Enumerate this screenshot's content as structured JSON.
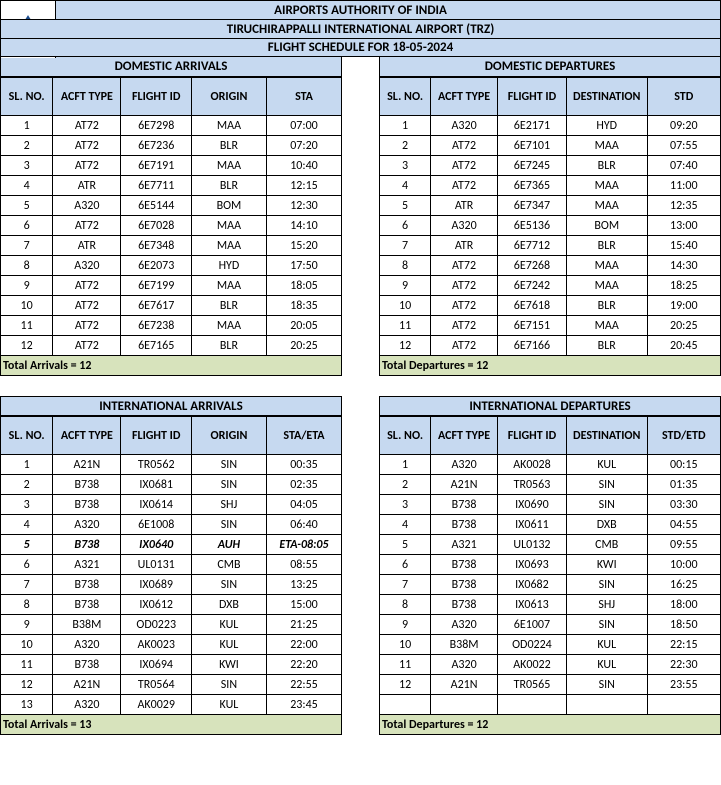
{
  "header": {
    "line1": "AIRPORTS AUTHORITY OF INDIA",
    "line2": "TIRUCHIRAPPALLI INTERNATIONAL AIRPORT (TRZ)",
    "line3": "FLIGHT SCHEDULE FOR 18-05-2024",
    "logo_text": "AIRPORTS AUTHORITY OF INDIA"
  },
  "colors": {
    "header_bg": "#c6d9f0",
    "total_bg": "#d7e3bc",
    "border": "#000000"
  },
  "dom_arr": {
    "title": "DOMESTIC ARRIVALS",
    "cols": [
      "SL. NO.",
      "ACFT TYPE",
      "FLIGHT ID",
      "ORIGIN",
      "STA"
    ],
    "rows": [
      [
        "1",
        "AT72",
        "6E7298",
        "MAA",
        "07:00"
      ],
      [
        "2",
        "AT72",
        "6E7236",
        "BLR",
        "07:20"
      ],
      [
        "3",
        "AT72",
        "6E7191",
        "MAA",
        "10:40"
      ],
      [
        "4",
        "ATR",
        "6E7711",
        "BLR",
        "12:15"
      ],
      [
        "5",
        "A320",
        "6E5144",
        "BOM",
        "12:30"
      ],
      [
        "6",
        "AT72",
        "6E7028",
        "MAA",
        "14:10"
      ],
      [
        "7",
        "ATR",
        "6E7348",
        "MAA",
        "15:20"
      ],
      [
        "8",
        "A320",
        "6E2073",
        "HYD",
        "17:50"
      ],
      [
        "9",
        "AT72",
        "6E7199",
        "MAA",
        "18:05"
      ],
      [
        "10",
        "AT72",
        "6E7617",
        "BLR",
        "18:35"
      ],
      [
        "11",
        "AT72",
        "6E7238",
        "MAA",
        "20:05"
      ],
      [
        "12",
        "AT72",
        "6E7165",
        "BLR",
        "20:25"
      ]
    ],
    "total": "Total Arrivals = 12"
  },
  "dom_dep": {
    "title": "DOMESTIC DEPARTURES",
    "cols": [
      "SL. NO.",
      "ACFT TYPE",
      "FLIGHT ID",
      "DESTINATION",
      "STD"
    ],
    "rows": [
      [
        "1",
        "A320",
        "6E2171",
        "HYD",
        "09:20"
      ],
      [
        "2",
        "AT72",
        "6E7101",
        "MAA",
        "07:55"
      ],
      [
        "3",
        "AT72",
        "6E7245",
        "BLR",
        "07:40"
      ],
      [
        "4",
        "AT72",
        "6E7365",
        "MAA",
        "11:00"
      ],
      [
        "5",
        "ATR",
        "6E7347",
        "MAA",
        "12:35"
      ],
      [
        "6",
        "A320",
        "6E5136",
        "BOM",
        "13:00"
      ],
      [
        "7",
        "ATR",
        "6E7712",
        "BLR",
        "15:40"
      ],
      [
        "8",
        "AT72",
        "6E7268",
        "MAA",
        "14:30"
      ],
      [
        "9",
        "AT72",
        "6E7242",
        "MAA",
        "18:25"
      ],
      [
        "10",
        "AT72",
        "6E7618",
        "BLR",
        "19:00"
      ],
      [
        "11",
        "AT72",
        "6E7151",
        "MAA",
        "20:25"
      ],
      [
        "12",
        "AT72",
        "6E7166",
        "BLR",
        "20:45"
      ]
    ],
    "total": "Total Departures = 12"
  },
  "int_arr": {
    "title": "INTERNATIONAL ARRIVALS",
    "cols": [
      "SL. NO.",
      "ACFT TYPE",
      "FLIGHT ID",
      "ORIGIN",
      "STA/ETA"
    ],
    "rows": [
      [
        "1",
        "A21N",
        "TR0562",
        "SIN",
        "00:35"
      ],
      [
        "2",
        "B738",
        "IX0681",
        "SIN",
        "02:35"
      ],
      [
        "3",
        "B738",
        "IX0614",
        "SHJ",
        "04:05"
      ],
      [
        "4",
        "A320",
        "6E1008",
        "SIN",
        "06:40"
      ],
      [
        "5",
        "B738",
        "IX0640",
        "AUH",
        "ETA-08:05"
      ],
      [
        "6",
        "A321",
        "UL0131",
        "CMB",
        "08:55"
      ],
      [
        "7",
        "B738",
        "IX0689",
        "SIN",
        "13:25"
      ],
      [
        "8",
        "B738",
        "IX0612",
        "DXB",
        "15:00"
      ],
      [
        "9",
        "B38M",
        "OD0223",
        "KUL",
        "21:25"
      ],
      [
        "10",
        "A320",
        "AK0023",
        "KUL",
        "22:00"
      ],
      [
        "11",
        "B738",
        "IX0694",
        "KWI",
        "22:20"
      ],
      [
        "12",
        "A21N",
        "TR0564",
        "SIN",
        "22:55"
      ],
      [
        "13",
        "A320",
        "AK0029",
        "KUL",
        "23:45"
      ]
    ],
    "highlight_row": 4,
    "total": "Total Arrivals = 13"
  },
  "int_dep": {
    "title": "INTERNATIONAL DEPARTURES",
    "cols": [
      "SL. NO.",
      "ACFT TYPE",
      "FLIGHT ID",
      "DESTINATION",
      "STD/ETD"
    ],
    "rows": [
      [
        "1",
        "A320",
        "AK0028",
        "KUL",
        "00:15"
      ],
      [
        "2",
        "A21N",
        "TR0563",
        "SIN",
        "01:35"
      ],
      [
        "3",
        "B738",
        "IX0690",
        "SIN",
        "03:30"
      ],
      [
        "4",
        "B738",
        "IX0611",
        "DXB",
        "04:55"
      ],
      [
        "5",
        "A321",
        "UL0132",
        "CMB",
        "09:55"
      ],
      [
        "6",
        "B738",
        "IX0693",
        "KWI",
        "10:00"
      ],
      [
        "7",
        "B738",
        "IX0682",
        "SIN",
        "16:25"
      ],
      [
        "8",
        "B738",
        "IX0613",
        "SHJ",
        "18:00"
      ],
      [
        "9",
        "A320",
        "6E1007",
        "SIN",
        "18:50"
      ],
      [
        "10",
        "B38M",
        "OD0224",
        "KUL",
        "22:15"
      ],
      [
        "11",
        "A320",
        "AK0022",
        "KUL",
        "22:30"
      ],
      [
        "12",
        "A21N",
        "TR0565",
        "SIN",
        "23:55"
      ]
    ],
    "total": "Total Departures = 12"
  }
}
